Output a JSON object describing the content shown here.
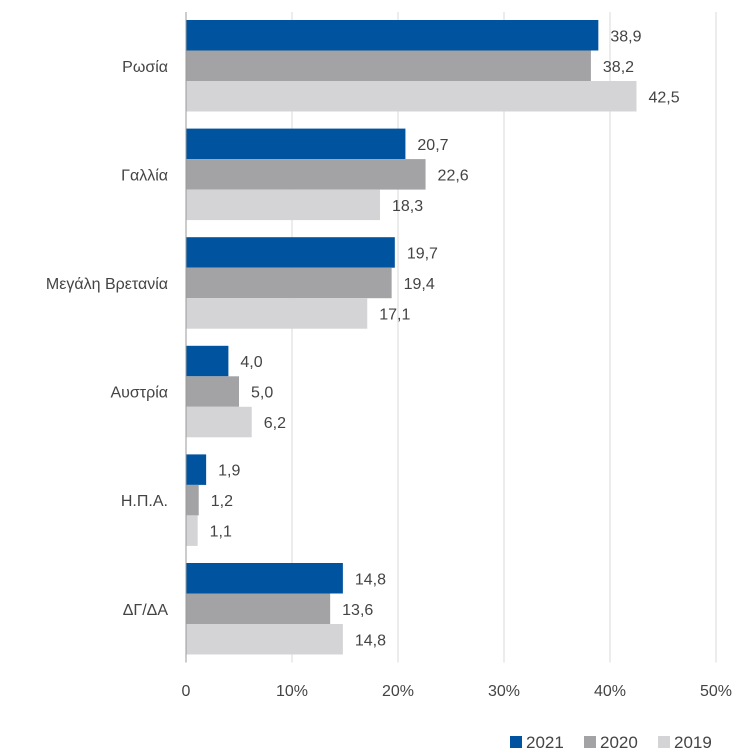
{
  "chart_data": {
    "type": "bar",
    "orientation": "horizontal",
    "categories": [
      "Ρωσία",
      "Γαλλία",
      "Μεγάλη Βρετανία",
      "Αυστρία",
      "Η.Π.Α.",
      "ΔΓ/ΔΑ"
    ],
    "series": [
      {
        "name": "2021",
        "color": "#00539f",
        "values": [
          38.9,
          20.7,
          19.7,
          4.0,
          1.9,
          14.8
        ],
        "labels": [
          "38,9",
          "20,7",
          "19,7",
          "4,0",
          "1,9",
          "14,8"
        ]
      },
      {
        "name": "2020",
        "color": "#a3a3a5",
        "values": [
          38.2,
          22.6,
          19.4,
          5.0,
          1.2,
          13.6
        ],
        "labels": [
          "38,2",
          "22,6",
          "19,4",
          "5,0",
          "1,2",
          "13,6"
        ]
      },
      {
        "name": "2019",
        "color": "#d4d4d6",
        "values": [
          42.5,
          18.3,
          17.1,
          6.2,
          1.1,
          14.8
        ],
        "labels": [
          "42,5",
          "18,3",
          "17,1",
          "6,2",
          "1,1",
          "14,8"
        ]
      }
    ],
    "xlim": [
      0,
      50
    ],
    "xticks": [
      0,
      10,
      20,
      30,
      40,
      50
    ],
    "xtick_labels": [
      "0",
      "10%",
      "20%",
      "30%",
      "40%",
      "50%"
    ],
    "grid": "vertical",
    "legend": "bottom-right",
    "title": "",
    "xlabel": "",
    "ylabel": ""
  }
}
